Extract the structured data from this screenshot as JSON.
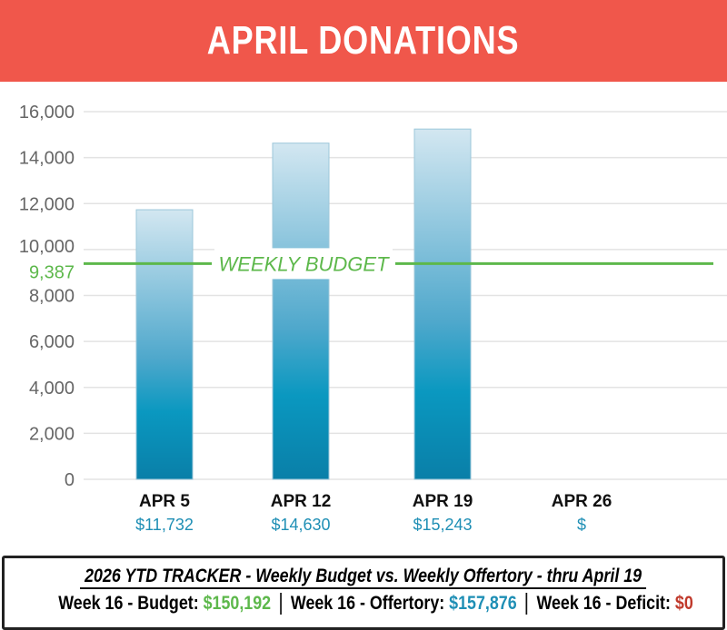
{
  "title": "APRIL DONATIONS",
  "chart_data": {
    "type": "bar",
    "title": "APRIL DONATIONS",
    "categories": [
      "APR 5",
      "APR 12",
      "APR 19",
      "APR 26"
    ],
    "values": [
      11732,
      14630,
      15243,
      null
    ],
    "value_labels": [
      "$11,732",
      "$14,630",
      "$15,243",
      "$"
    ],
    "ylim": [
      0,
      16000
    ],
    "yticks": [
      "0",
      "2,000",
      "4,000",
      "6,000",
      "8,000",
      "10,000",
      "12,000",
      "14,000",
      "16,000"
    ],
    "ytick_values": [
      0,
      2000,
      4000,
      6000,
      8000,
      10000,
      12000,
      14000,
      16000
    ],
    "grid": true,
    "reference_line": {
      "value": 9387,
      "value_label": "9,387",
      "label": "WEEKLY BUDGET",
      "color": "#5DB84B"
    },
    "bar_color": "#0A8DB5"
  },
  "footer": {
    "title": "2026 YTD TRACKER  - Weekly Budget  vs. Weekly Offertory  - thru April 19",
    "budget_label": "Week 16 - Budget:",
    "budget_value": "$150,192",
    "offertory_label": "Week 16 - Offertory:",
    "offertory_value": "$157,876",
    "deficit_label": "Week 16 - Deficit:",
    "deficit_value": "$0"
  }
}
